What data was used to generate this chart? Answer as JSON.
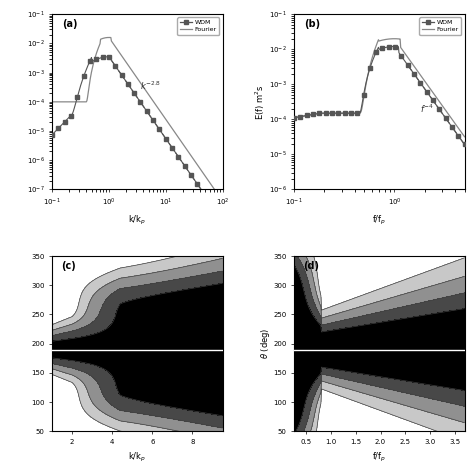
{
  "panel_a": {
    "label": "(a)",
    "xlabel": "k/k$_p$",
    "ylabel": "",
    "ylim": [
      1e-07,
      0.1
    ],
    "xlim": [
      0.1,
      100
    ],
    "slope_label": "k$^{-2.8}$",
    "legend": [
      "WDM",
      "Fourier"
    ]
  },
  "panel_b": {
    "label": "(b)",
    "xlabel": "f/f$_p$",
    "ylabel": "E(f) m$^2$s",
    "ylim": [
      1e-06,
      0.1
    ],
    "xlim": [
      0.1,
      5.0
    ],
    "slope_label": "f$^{-4}$",
    "legend": [
      "WDM",
      "Fourier"
    ]
  },
  "panel_c": {
    "label": "(c)",
    "xlabel": "k/k$_p$",
    "ylabel": "",
    "ylim": [
      50,
      350
    ],
    "xlim": [
      1,
      9.5
    ],
    "hline": 190,
    "yticks": [
      50,
      100,
      150,
      200,
      250,
      300,
      350
    ]
  },
  "panel_d": {
    "label": "(d)",
    "xlabel": "f/f$_p$",
    "ylabel": "$\\theta$ (deg)",
    "ylim": [
      50,
      350
    ],
    "xlim": [
      0.25,
      3.7
    ],
    "hline": 190,
    "yticks": [
      50,
      100,
      150,
      200,
      250,
      300,
      350
    ]
  },
  "contour_colors": [
    "#ffffff",
    "#c8c8c8",
    "#909090",
    "#484848",
    "#000000"
  ],
  "contour_line_color": "#404040",
  "line_wdm_color": "#555555",
  "line_fourier_color": "#888888",
  "slope_color": "#555555",
  "background_color": "#ffffff"
}
